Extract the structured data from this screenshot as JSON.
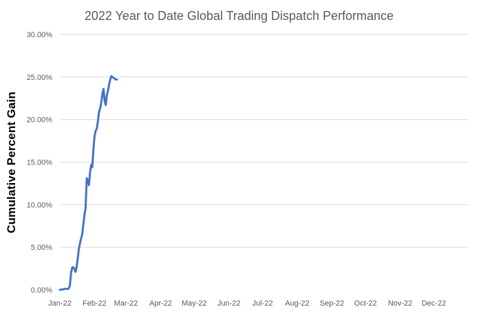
{
  "chart_data": {
    "type": "line",
    "title": "2022 Year to Date Global Trading Dispatch Performance",
    "ylabel": "Cumulative Percent Gain",
    "xlabel": "",
    "legend": "none",
    "grid": "horizontal gridlines every 5%, none at 0%, no plot border",
    "ylim": [
      0,
      30
    ],
    "y_ticks": [
      {
        "value": 0,
        "label": "0.00%"
      },
      {
        "value": 5,
        "label": "5.00%"
      },
      {
        "value": 10,
        "label": "10.00%"
      },
      {
        "value": 15,
        "label": "15.00%"
      },
      {
        "value": 20,
        "label": "20.00%"
      },
      {
        "value": 25,
        "label": "25.00%"
      },
      {
        "value": 30,
        "label": "30.00%"
      }
    ],
    "x_tick_labels": [
      "Jan-22",
      "Feb-22",
      "Mar-22",
      "Apr-22",
      "May-22",
      "Jun-22",
      "Jul-22",
      "Aug-22",
      "Sep-22",
      "Oct-22",
      "Nov-22",
      "Dec-22"
    ],
    "x_tick_day_offsets": [
      0,
      31,
      59,
      90,
      120,
      151,
      181,
      212,
      243,
      273,
      304,
      334
    ],
    "x_axis_total_days": 365,
    "series": [
      {
        "name": "Cumulative Percent Gain",
        "color": "#4472C4",
        "start_label": "Jan-22",
        "note": "daily cumulative percent gain, one value per day starting Jan 1 2022, ending about Feb 21 2022",
        "daily_values_pct": [
          0,
          0,
          0.05,
          0.05,
          0.1,
          0.1,
          0.1,
          0.1,
          0.15,
          0.5,
          2.0,
          2.6,
          2.65,
          2.4,
          2.1,
          2.7,
          3.7,
          4.8,
          5.5,
          6.0,
          6.5,
          7.7,
          8.8,
          9.6,
          13.1,
          12.8,
          12.3,
          13.8,
          14.7,
          14.4,
          16.5,
          18.0,
          18.7,
          18.9,
          19.8,
          20.9,
          21.3,
          22.0,
          23.0,
          23.6,
          22.2,
          21.7,
          22.9,
          23.4,
          24.1,
          24.7,
          25.1,
          25.0,
          24.9,
          24.8,
          24.7,
          24.7
        ]
      }
    ],
    "colors": {
      "line": "#4472C4",
      "gridline": "#D9D9D9",
      "tick_label_text": "#595959",
      "title_text": "#595959",
      "y_axis_title_text": "#000000",
      "background": "#FFFFFF"
    }
  }
}
